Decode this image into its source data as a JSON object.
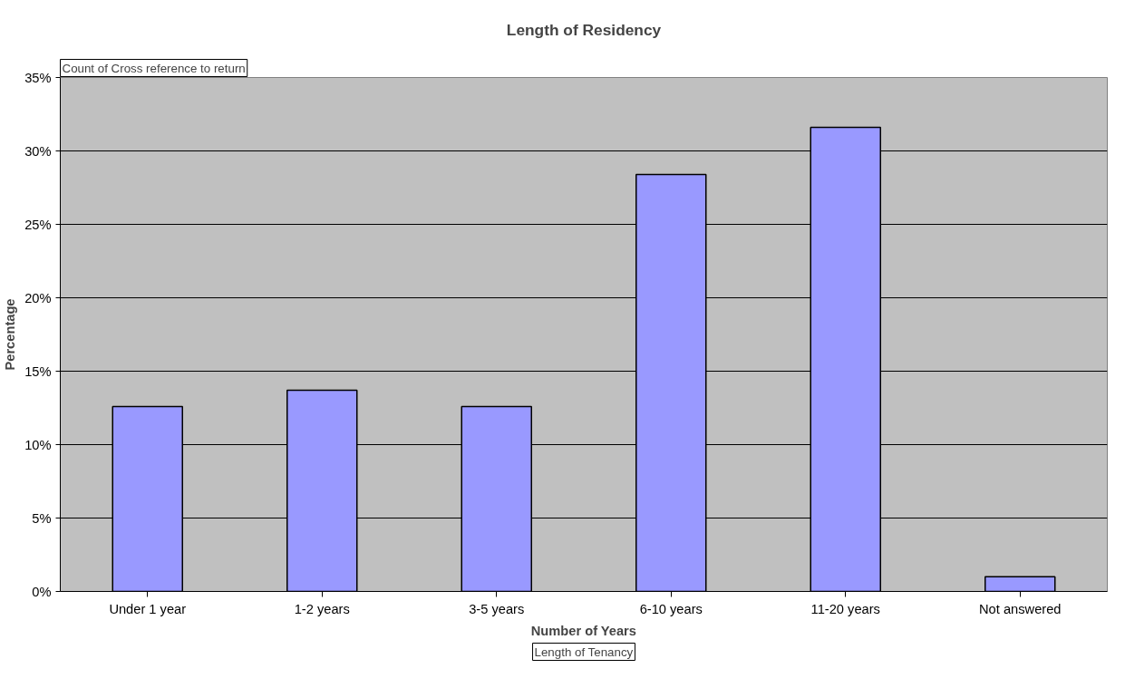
{
  "chart_data": {
    "type": "bar",
    "title": "Length of Residency",
    "xlabel": "Number of Years",
    "ylabel": "Percentage",
    "categories": [
      "Under 1 year",
      "1-2 years",
      "3-5 years",
      "6-10 years",
      "11-20 years",
      "Not answered"
    ],
    "values": [
      12.6,
      13.7,
      12.6,
      28.4,
      31.6,
      1.0
    ],
    "color": "#9999ff",
    "ylim": [
      0,
      35
    ],
    "yticks": [
      {
        "value": 0,
        "label": "0%"
      },
      {
        "value": 5,
        "label": "5%"
      },
      {
        "value": 10,
        "label": "10%"
      },
      {
        "value": 15,
        "label": "15%"
      },
      {
        "value": 20,
        "label": "20%"
      },
      {
        "value": 25,
        "label": "25%"
      },
      {
        "value": 30,
        "label": "30%"
      },
      {
        "value": 35,
        "label": "35%"
      }
    ],
    "grid": "y",
    "annotations": [
      "Count of Cross reference to return",
      "Length of Tenancy"
    ]
  }
}
